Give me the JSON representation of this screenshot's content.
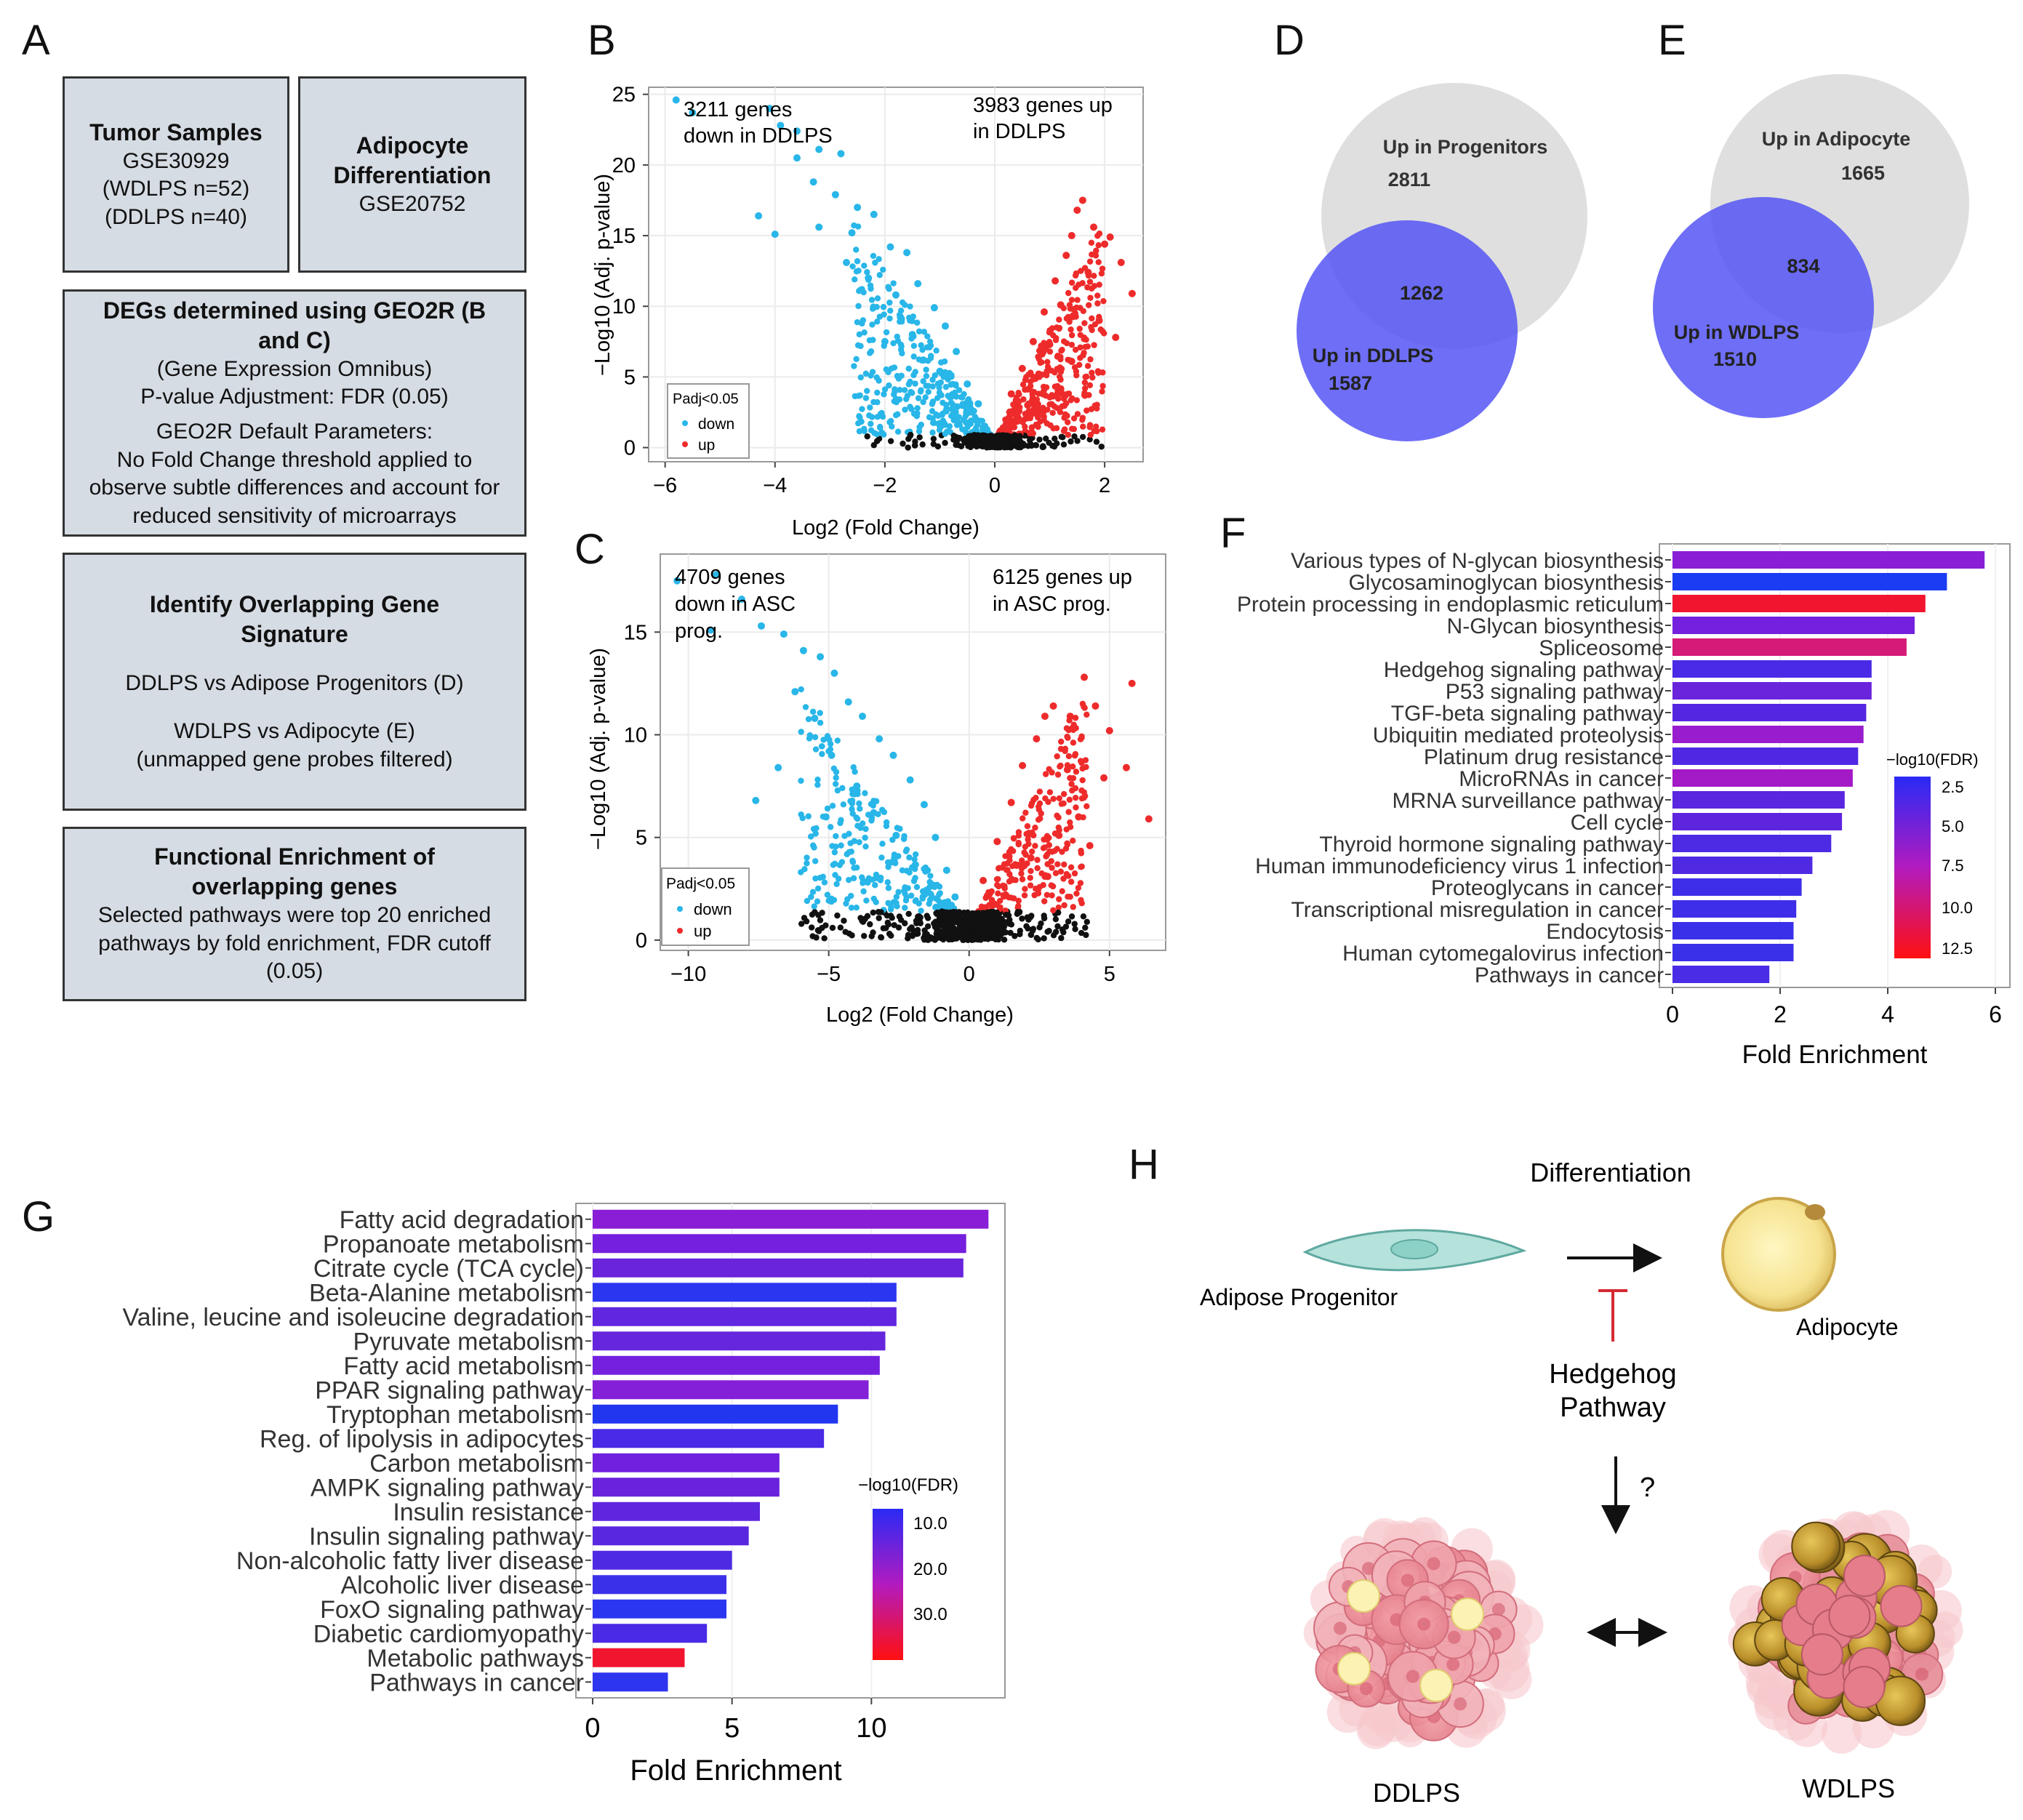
{
  "panels": {
    "A": "A",
    "B": "B",
    "C": "C",
    "D": "D",
    "E": "E",
    "F": "F",
    "G": "G",
    "H": "H"
  },
  "flowchart": {
    "tumor": {
      "title": "Tumor Samples",
      "lines": [
        "GSE30929",
        "(WDLPS n=52)",
        "(DDLPS n=40)"
      ]
    },
    "adipocyte": {
      "title_1": "Adipocyte",
      "title_2": "Differentiation",
      "accession": "GSE20752"
    },
    "degs": {
      "title_1": "DEGs determined using GEO2R (B",
      "title_2": "and C)",
      "lines": [
        "(Gene Expression Omnibus)",
        "P-value Adjustment:  FDR (0.05)"
      ],
      "lines2": [
        "GEO2R Default Parameters:",
        "No Fold Change threshold applied to",
        "observe subtle differences and account for",
        "reduced sensitivity of microarrays"
      ]
    },
    "overlap": {
      "title_1": "Identify Overlapping Gene",
      "title_2": "Signature",
      "line1": "DDLPS vs Adipose Progenitors (D)",
      "line2": "WDLPS vs Adipocyte (E)",
      "line3": "(unmapped  gene probes filtered)"
    },
    "enrich": {
      "title_1": "Functional Enrichment of",
      "title_2": "overlapping genes",
      "lines": [
        "Selected pathways were top 20 enriched",
        "pathways by fold enrichment, FDR cutoff",
        "(0.05)"
      ]
    }
  },
  "volcano_B": {
    "ann_left_1": "3211 genes",
    "ann_left_2": "down in DDLPS",
    "ann_right_1": "3983 genes up",
    "ann_right_2": "in DDLPS",
    "xlabel": "Log2 (Fold Change)",
    "ylabel": "−Log10 (Adj. p-value)",
    "xticks": [
      "−6",
      "−4",
      "−2",
      "0",
      "2"
    ],
    "yticks": [
      "0",
      "5",
      "10",
      "15",
      "20",
      "25"
    ],
    "legend_title": "Padj<0.05",
    "legend_down": "down",
    "legend_up": "up"
  },
  "volcano_C": {
    "ann_left_1": "4709 genes",
    "ann_left_2": "down in ASC",
    "ann_left_3": "prog.",
    "ann_right_1": "6125 genes up",
    "ann_right_2": "in ASC prog.",
    "xlabel": "Log2 (Fold Change)",
    "ylabel": "−Log10 (Adj. p-value)",
    "xticks": [
      "−10",
      "−5",
      "0",
      "5"
    ],
    "yticks": [
      "0",
      "5",
      "10",
      "15"
    ],
    "legend_title": "Padj<0.05",
    "legend_down": "down",
    "legend_up": "up"
  },
  "venn_D": {
    "top_label": "Up in Progenitors",
    "top_count": "2811",
    "overlap_count": "1262",
    "bottom_label": "Up in DDLPS",
    "bottom_count": "1587"
  },
  "venn_E": {
    "top_label": "Up in Adipocyte",
    "top_count": "1665",
    "overlap_count": "834",
    "bottom_label": "Up in WDLPS",
    "bottom_count": "1510"
  },
  "bar_F_legend": {
    "title": "−log10(FDR)",
    "ticks": [
      "2.5",
      "5.0",
      "7.5",
      "10.0",
      "12.5"
    ]
  },
  "bar_G_legend": {
    "title": "−log10(FDR)",
    "ticks": [
      "10.0",
      "20.0",
      "30.0"
    ]
  },
  "schematic": {
    "differentiation": "Differentiation",
    "progenitor": "Adipose Progenitor",
    "adipocyte": "Adipocyte",
    "hedgehog_1": "Hedgehog",
    "hedgehog_2": "Pathway",
    "question": "?",
    "ddlps": "DDLPS",
    "wdlps": "WDLPS"
  },
  "chart_data": [
    {
      "id": "B",
      "type": "scatter",
      "title": "",
      "xlabel": "Log2 (Fold Change)",
      "ylabel": "−Log10 (Adj. p-value)",
      "xlim": [
        -6.3,
        2.7
      ],
      "ylim": [
        -1,
        25.5
      ],
      "series": [
        {
          "name": "down",
          "points": [
            [
              -5.8,
              24.6
            ],
            [
              -5.5,
              23.7
            ],
            [
              -4.1,
              24.0
            ],
            [
              -3.9,
              22.8
            ],
            [
              -3.6,
              22.4
            ],
            [
              -3.2,
              21.1
            ],
            [
              -3.6,
              20.5
            ],
            [
              -2.8,
              20.8
            ],
            [
              -4.3,
              16.4
            ],
            [
              -4.0,
              15.1
            ],
            [
              -3.2,
              15.6
            ],
            [
              -2.5,
              17.0
            ],
            [
              -2.2,
              16.5
            ],
            [
              -1.9,
              14.2
            ],
            [
              -1.6,
              13.8
            ],
            [
              -1.4,
              11.6
            ],
            [
              -1.1,
              9.9
            ],
            [
              -0.9,
              8.6
            ],
            [
              -0.7,
              6.8
            ],
            [
              -0.5,
              4.5
            ],
            [
              -0.3,
              3.1
            ],
            [
              -2.7,
              13.1
            ],
            [
              -2.3,
              12.0
            ],
            [
              -1.8,
              10.8
            ],
            [
              -1.5,
              8.0
            ],
            [
              -1.3,
              6.2
            ],
            [
              -1.0,
              5.4
            ],
            [
              -0.8,
              3.6
            ],
            [
              -2.0,
              7.5
            ],
            [
              -2.9,
              17.9
            ],
            [
              -3.3,
              18.8
            ],
            [
              -2.6,
              15.2
            ],
            [
              -1.7,
              9.1
            ]
          ]
        },
        {
          "name": "up",
          "points": [
            [
              0.3,
              3.8
            ],
            [
              0.5,
              5.6
            ],
            [
              0.7,
              7.5
            ],
            [
              0.9,
              9.6
            ],
            [
              1.1,
              11.8
            ],
            [
              1.3,
              13.6
            ],
            [
              1.4,
              15.0
            ],
            [
              1.5,
              16.8
            ],
            [
              1.6,
              17.5
            ],
            [
              1.8,
              15.6
            ],
            [
              2.0,
              14.4
            ],
            [
              2.1,
              14.9
            ],
            [
              2.3,
              13.1
            ],
            [
              2.5,
              10.9
            ],
            [
              1.2,
              10.1
            ],
            [
              1.0,
              7.3
            ],
            [
              0.8,
              5.2
            ],
            [
              0.6,
              3.0
            ],
            [
              1.7,
              12.4
            ],
            [
              1.9,
              9.0
            ],
            [
              2.2,
              7.8
            ],
            [
              1.4,
              6.1
            ],
            [
              0.4,
              2.2
            ],
            [
              1.2,
              4.1
            ]
          ]
        }
      ]
    },
    {
      "id": "C",
      "type": "scatter",
      "title": "",
      "xlabel": "Log2 (Fold Change)",
      "ylabel": "−Log10 (Adj. p-value)",
      "xlim": [
        -11,
        7
      ],
      "ylim": [
        -0.5,
        18.8
      ],
      "series": [
        {
          "name": "down",
          "points": [
            [
              -10.4,
              17.5
            ],
            [
              -9.0,
              17.8
            ],
            [
              -8.1,
              16.6
            ],
            [
              -7.4,
              15.3
            ],
            [
              -6.6,
              14.9
            ],
            [
              -5.9,
              14.1
            ],
            [
              -5.3,
              13.8
            ],
            [
              -4.8,
              13.0
            ],
            [
              -4.3,
              11.6
            ],
            [
              -3.8,
              10.9
            ],
            [
              -3.2,
              9.8
            ],
            [
              -2.7,
              9.0
            ],
            [
              -2.1,
              7.8
            ],
            [
              -1.6,
              6.6
            ],
            [
              -1.2,
              5.0
            ],
            [
              -0.8,
              3.4
            ],
            [
              -0.5,
              2.1
            ],
            [
              -6.2,
              12.1
            ],
            [
              -5.5,
              10.8
            ],
            [
              -4.9,
              9.0
            ],
            [
              -4.0,
              7.5
            ],
            [
              -3.4,
              6.2
            ],
            [
              -2.6,
              5.1
            ],
            [
              -7.6,
              6.8
            ],
            [
              -6.8,
              8.4
            ],
            [
              -9.2,
              15.1
            ],
            [
              -5.1,
              6.0
            ]
          ]
        },
        {
          "name": "up",
          "points": [
            [
              0.5,
              2.9
            ],
            [
              1.0,
              4.8
            ],
            [
              1.5,
              6.7
            ],
            [
              1.9,
              8.5
            ],
            [
              2.4,
              9.8
            ],
            [
              2.7,
              10.9
            ],
            [
              3.0,
              11.4
            ],
            [
              3.6,
              10.9
            ],
            [
              4.1,
              12.8
            ],
            [
              4.5,
              11.4
            ],
            [
              5.0,
              10.2
            ],
            [
              5.8,
              12.5
            ],
            [
              6.4,
              5.9
            ],
            [
              5.6,
              8.4
            ],
            [
              4.8,
              7.9
            ],
            [
              3.9,
              6.0
            ],
            [
              3.2,
              5.1
            ],
            [
              2.2,
              4.0
            ],
            [
              1.3,
              2.2
            ],
            [
              3.5,
              8.3
            ],
            [
              4.3,
              4.6
            ],
            [
              2.8,
              3.1
            ]
          ]
        }
      ]
    },
    {
      "id": "F",
      "type": "bar",
      "orientation": "horizontal",
      "xlabel": "Fold Enrichment",
      "ylabel": "",
      "xlim": [
        0,
        6
      ],
      "xticks": [
        0,
        2,
        4,
        6
      ],
      "color_scale": "-log10(FDR)",
      "color_range": [
        2.5,
        12.5
      ],
      "categories": [
        "Various types of N-glycan biosynthesis",
        "Glycosaminoglycan biosynthesis",
        "Protein processing in endoplasmic reticulum",
        "N-Glycan biosynthesis",
        "Spliceosome",
        "Hedgehog signaling pathway",
        "P53 signaling pathway",
        "TGF-beta signaling pathway",
        "Ubiquitin mediated proteolysis",
        "Platinum drug resistance",
        "MicroRNAs in cancer",
        "MRNA surveillance pathway",
        "Cell cycle",
        "Thyroid hormone signaling pathway",
        "Human immunodeficiency virus 1 infection",
        "Proteoglycans in cancer",
        "Transcriptional misregulation in cancer",
        "Endocytosis",
        "Human cytomegalovirus infection",
        "Pathways in cancer"
      ],
      "values": [
        5.8,
        5.1,
        4.7,
        4.5,
        4.35,
        3.7,
        3.7,
        3.6,
        3.55,
        3.45,
        3.35,
        3.2,
        3.15,
        2.95,
        2.6,
        2.4,
        2.3,
        2.25,
        2.25,
        1.8
      ],
      "colors": [
        "#8a1ed6",
        "#1a3cf2",
        "#f21530",
        "#7420de",
        "#d61a78",
        "#4a2ae6",
        "#6a24dc",
        "#5526e2",
        "#9a1ccf",
        "#5028e4",
        "#a41ac7",
        "#5a26e0",
        "#5e25df",
        "#4d2ae4",
        "#502ae3",
        "#3f2ee9",
        "#3f2ee9",
        "#3a30ea",
        "#3a30ea",
        "#4a2ce6"
      ]
    },
    {
      "id": "G",
      "type": "bar",
      "orientation": "horizontal",
      "xlabel": "Fold Enrichment",
      "ylabel": "",
      "xlim": [
        0,
        15
      ],
      "xticks": [
        0,
        5,
        10
      ],
      "color_scale": "-log10(FDR)",
      "color_range": [
        5,
        35
      ],
      "categories": [
        "Fatty acid degradation",
        "Propanoate metabolism",
        "Citrate cycle (TCA cycle)",
        "Beta-Alanine metabolism",
        "Valine, leucine and isoleucine degradation",
        "Pyruvate metabolism",
        "Fatty acid metabolism",
        "PPAR signaling pathway",
        "Tryptophan metabolism",
        "Reg. of lipolysis in adipocytes",
        "Carbon metabolism",
        "AMPK signaling pathway",
        "Insulin resistance",
        "Insulin signaling pathway",
        "Non-alcoholic fatty liver disease",
        "Alcoholic liver disease",
        "FoxO signaling pathway",
        "Diabetic cardiomyopathy",
        "Metabolic pathways",
        "Pathways in cancer"
      ],
      "values": [
        14.2,
        13.4,
        13.3,
        10.9,
        10.9,
        10.5,
        10.3,
        9.9,
        8.8,
        8.3,
        6.7,
        6.7,
        6.0,
        5.6,
        5.0,
        4.8,
        4.8,
        4.1,
        3.3,
        2.7
      ],
      "colors": [
        "#8a1ed6",
        "#7420de",
        "#6a24dc",
        "#2a36ef",
        "#6026e0",
        "#6526dd",
        "#7420de",
        "#8420d8",
        "#2236f0",
        "#4a2ae6",
        "#7020de",
        "#6a22dc",
        "#5f26e0",
        "#5a27e1",
        "#4f2ae3",
        "#3a30ea",
        "#2a36ef",
        "#4a2ae6",
        "#f21530",
        "#2e35ee"
      ]
    }
  ]
}
